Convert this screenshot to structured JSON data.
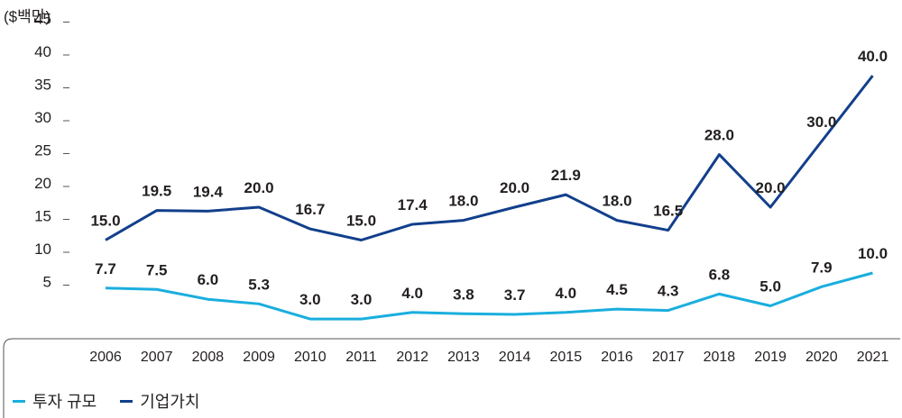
{
  "unit_label": "($백만)",
  "colors": {
    "series_1": "#1aaede",
    "series_2": "#123f8c"
  },
  "legend": [
    {
      "label": "투자 규모"
    },
    {
      "label": "기업가치"
    }
  ],
  "chart_data": {
    "type": "line",
    "title": "",
    "xlabel": "",
    "ylabel": "($백만)",
    "ylim": [
      0,
      45
    ],
    "y_ticks": [
      "5",
      "10",
      "15",
      "20",
      "25",
      "30",
      "35",
      "40",
      "45"
    ],
    "categories": [
      "2006",
      "2007",
      "2008",
      "2009",
      "2010",
      "2011",
      "2012",
      "2013",
      "2014",
      "2015",
      "2016",
      "2017",
      "2018",
      "2019",
      "2020",
      "2021"
    ],
    "series": [
      {
        "name": "투자 규모",
        "values": [
          7.7,
          7.5,
          6.0,
          5.3,
          3.0,
          3.0,
          4.0,
          3.8,
          3.7,
          4.0,
          4.5,
          4.3,
          6.8,
          5.0,
          7.9,
          10.0
        ]
      },
      {
        "name": "기업가치",
        "values": [
          15.0,
          19.5,
          19.4,
          20.0,
          16.7,
          15.0,
          17.4,
          18.0,
          20.0,
          21.9,
          18.0,
          16.5,
          28.0,
          20.0,
          30.0,
          40.0
        ]
      }
    ]
  }
}
